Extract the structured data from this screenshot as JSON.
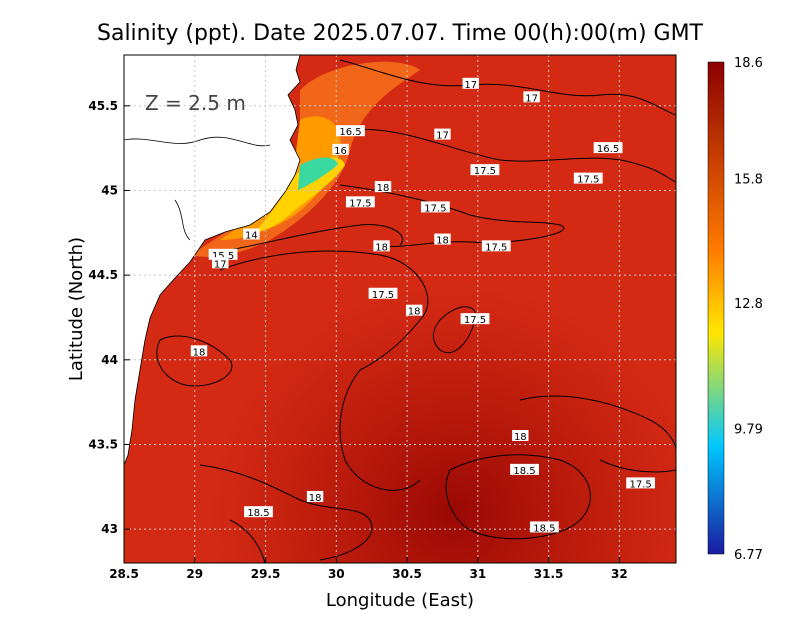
{
  "title": "Salinity (ppt). Date 2025.07.07. Time 00(h):00(m) GMT",
  "depth_label": "Z  =  2.5  m",
  "colors": {
    "low": "#1a1aa0",
    "mid_low": "#00c8ff",
    "mid": "#ffe600",
    "mid_high": "#ff7a00",
    "high": "#8b0000",
    "sea_base": "#d42a14",
    "land": "#ffffff"
  },
  "chart_data": {
    "type": "heatmap",
    "title": "Salinity (ppt). Date 2025.07.07. Time 00(h):00(m) GMT",
    "xlabel": "Longitude (East)",
    "ylabel": "Latitude (North)",
    "xlim": [
      28.5,
      32.4
    ],
    "ylim": [
      42.8,
      45.8
    ],
    "x_ticks": [
      "28.5",
      "29",
      "29.5",
      "30",
      "30.5",
      "31",
      "31.5",
      "32"
    ],
    "y_ticks": [
      "43",
      "43.5",
      "44",
      "44.5",
      "45",
      "45.5"
    ],
    "grid": true,
    "colorbar": {
      "min": 6.77,
      "max": 18.6,
      "tick_labels": [
        "18.6",
        "15.8",
        "12.8",
        "9.79",
        "6.77"
      ],
      "tick_values": [
        18.6,
        15.8,
        12.8,
        9.79,
        6.77
      ]
    },
    "contour_labels": [
      {
        "text": "17",
        "lon": 30.95,
        "lat": 45.63
      },
      {
        "text": "17",
        "lon": 31.38,
        "lat": 45.55
      },
      {
        "text": "16.5",
        "lon": 30.1,
        "lat": 45.35
      },
      {
        "text": "17",
        "lon": 30.75,
        "lat": 45.33
      },
      {
        "text": "16.5",
        "lon": 31.92,
        "lat": 45.25
      },
      {
        "text": "16",
        "lon": 30.03,
        "lat": 45.24
      },
      {
        "text": "17.5",
        "lon": 31.05,
        "lat": 45.12
      },
      {
        "text": "17.5",
        "lon": 31.78,
        "lat": 45.07
      },
      {
        "text": "18",
        "lon": 30.33,
        "lat": 45.02
      },
      {
        "text": "17.5",
        "lon": 30.17,
        "lat": 44.93
      },
      {
        "text": "17.5",
        "lon": 30.7,
        "lat": 44.9
      },
      {
        "text": "14",
        "lon": 29.4,
        "lat": 44.74
      },
      {
        "text": "18",
        "lon": 30.75,
        "lat": 44.71
      },
      {
        "text": "18",
        "lon": 30.32,
        "lat": 44.67
      },
      {
        "text": "17.5",
        "lon": 31.13,
        "lat": 44.67
      },
      {
        "text": "15.5",
        "lon": 29.2,
        "lat": 44.62
      },
      {
        "text": "17",
        "lon": 29.18,
        "lat": 44.57
      },
      {
        "text": "17.5",
        "lon": 30.33,
        "lat": 44.39
      },
      {
        "text": "18",
        "lon": 30.55,
        "lat": 44.29
      },
      {
        "text": "17.5",
        "lon": 30.98,
        "lat": 44.24
      },
      {
        "text": "18",
        "lon": 29.03,
        "lat": 44.05
      },
      {
        "text": "18",
        "lon": 31.3,
        "lat": 43.55
      },
      {
        "text": "18.5",
        "lon": 31.33,
        "lat": 43.35
      },
      {
        "text": "17.5",
        "lon": 32.15,
        "lat": 43.27
      },
      {
        "text": "18",
        "lon": 29.85,
        "lat": 43.19
      },
      {
        "text": "18.5",
        "lon": 29.45,
        "lat": 43.1
      },
      {
        "text": "18.5",
        "lon": 31.47,
        "lat": 43.01
      }
    ]
  }
}
